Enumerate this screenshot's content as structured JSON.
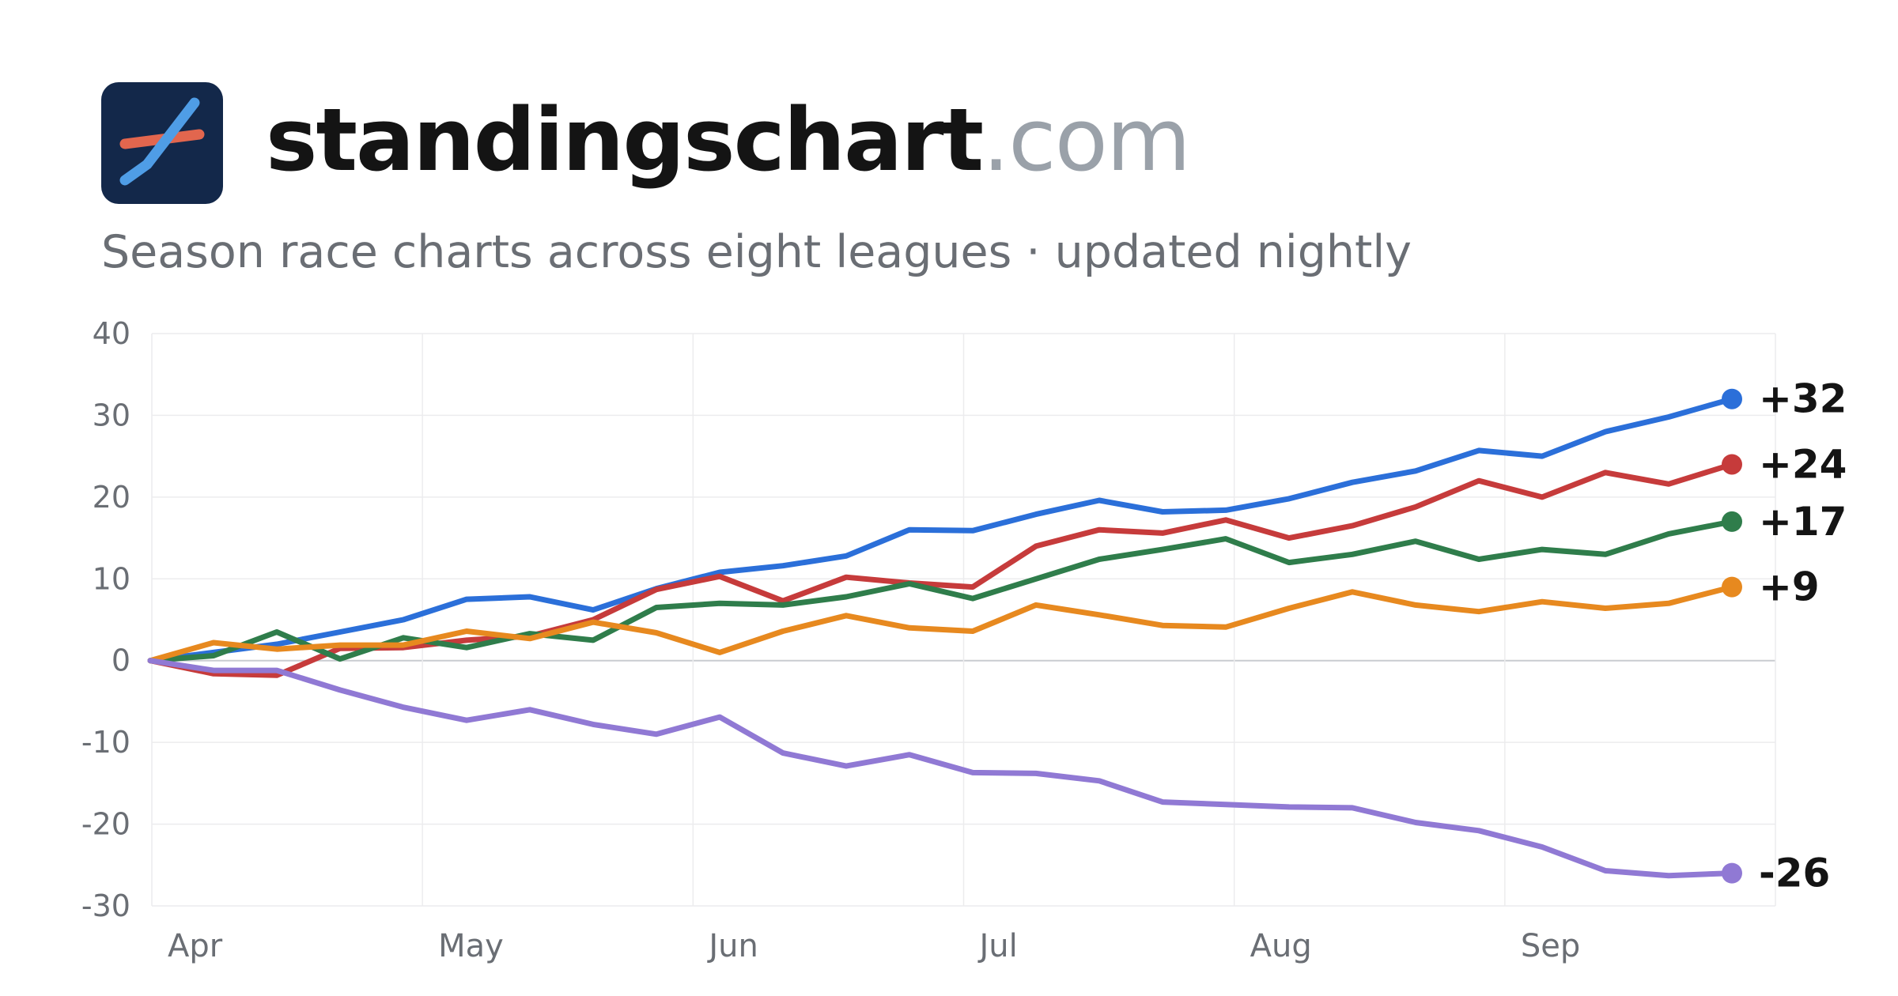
{
  "site": {
    "brand_name": "standingschart",
    "brand_tld": ".com",
    "tagline": "Season race charts across eight leagues · updated nightly",
    "logo_icon": "rising-line-logo-icon",
    "colors": {
      "logo_bg": "#13284a",
      "logo_red": "#e2664e",
      "logo_blue": "#4f9de6"
    }
  },
  "chart_data": {
    "type": "line",
    "x_ticks": [
      "Apr",
      "May",
      "Jun",
      "Jul",
      "Aug",
      "Sep"
    ],
    "y_ticks": [
      40,
      30,
      20,
      10,
      0,
      -10,
      -20,
      -30
    ],
    "ylim": [
      -30,
      40
    ],
    "grid": true,
    "legend": "none",
    "series": [
      {
        "color": "#2b6fd9",
        "label": "+32",
        "values": [
          0,
          1,
          2,
          3.5,
          5,
          7.5,
          7.8,
          6.2,
          8.8,
          10.8,
          11.6,
          12.8,
          16,
          15.9,
          17.9,
          19.6,
          18.2,
          18.4,
          19.8,
          21.8,
          23.2,
          25.7,
          25,
          28,
          29.8,
          32
        ]
      },
      {
        "color": "#c63b3b",
        "label": "+24",
        "values": [
          0,
          -1.6,
          -1.8,
          1.5,
          1.6,
          2.5,
          3,
          5,
          8.7,
          10.3,
          7.3,
          10.2,
          9.5,
          9,
          14,
          16,
          15.6,
          17.2,
          15,
          16.5,
          18.8,
          22,
          20,
          23,
          21.6,
          24
        ]
      },
      {
        "color": "#2f7d4b",
        "label": "+17",
        "values": [
          0,
          0.6,
          3.5,
          0.2,
          2.8,
          1.6,
          3.3,
          2.5,
          6.5,
          7,
          6.8,
          7.8,
          9.4,
          7.6,
          10,
          12.4,
          13.6,
          14.9,
          12,
          13,
          14.6,
          12.4,
          13.6,
          13,
          15.5,
          17
        ]
      },
      {
        "color": "#e7891f",
        "label": "+9",
        "values": [
          0,
          2.2,
          1.4,
          1.9,
          1.9,
          3.6,
          2.7,
          4.7,
          3.4,
          1,
          3.6,
          5.5,
          4,
          3.6,
          6.8,
          5.6,
          4.3,
          4.1,
          6.4,
          8.4,
          6.8,
          6,
          7.2,
          6.4,
          7,
          9
        ]
      },
      {
        "color": "#9079d4",
        "label": "-26",
        "values": [
          0,
          -1.2,
          -1.2,
          -3.6,
          -5.7,
          -7.3,
          -6,
          -7.8,
          -9,
          -6.9,
          -11.3,
          -12.9,
          -11.5,
          -13.7,
          -13.8,
          -14.7,
          -17.3,
          -17.6,
          -17.9,
          -18,
          -19.8,
          -20.8,
          -22.8,
          -25.7,
          -26.3,
          -26
        ]
      }
    ]
  }
}
